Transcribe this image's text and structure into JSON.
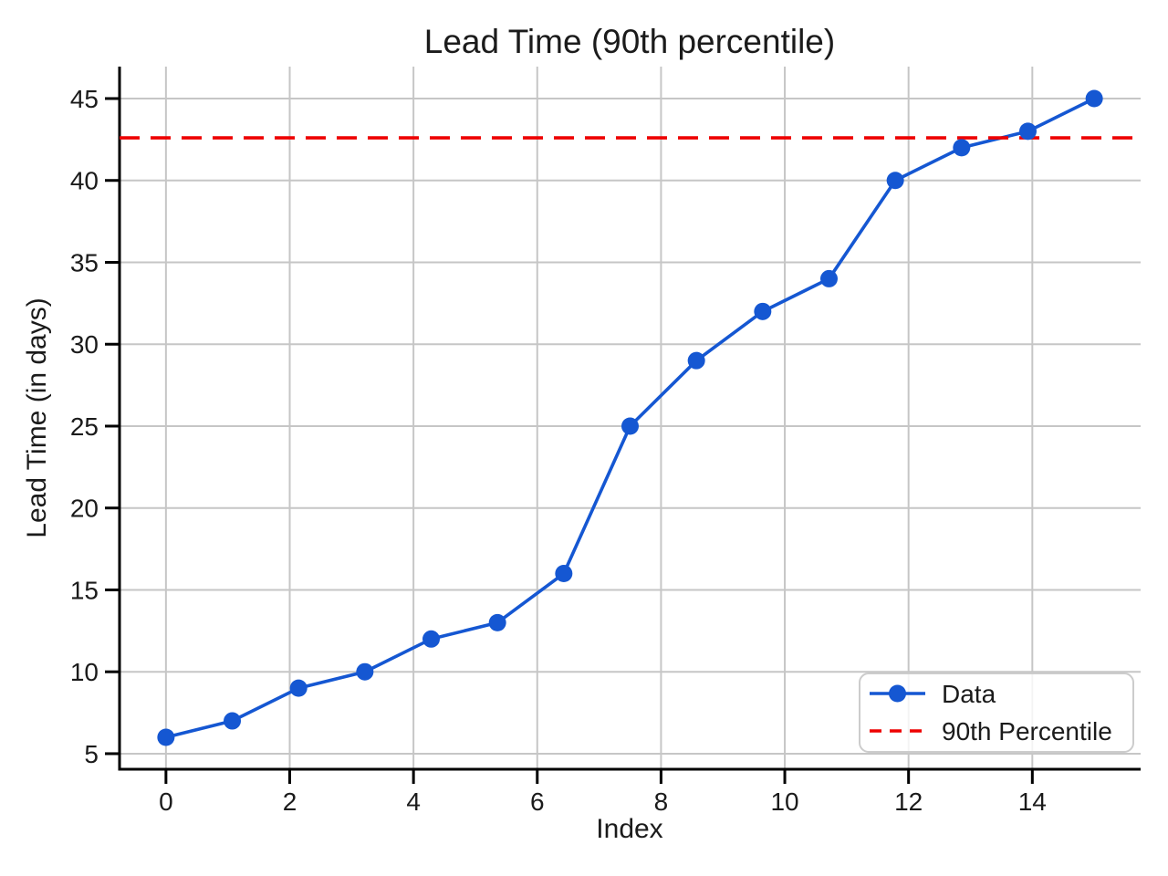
{
  "chart_data": {
    "type": "line",
    "title": "Lead Time (90th percentile)",
    "xlabel": "Index",
    "ylabel": "Lead Time (in days)",
    "x": [
      0,
      1.0714,
      2.1429,
      3.2143,
      4.2857,
      5.3571,
      6.4286,
      7.5,
      8.5714,
      9.6429,
      10.7143,
      11.7857,
      12.8571,
      13.9286,
      15
    ],
    "y": [
      6,
      7,
      9,
      10,
      12,
      13,
      16,
      25,
      29,
      32,
      34,
      40,
      42,
      43,
      45
    ],
    "percentile_line": {
      "value": 42.6,
      "style": "dashed"
    },
    "xlim": [
      -0.75,
      15.75
    ],
    "ylim": [
      4.05,
      46.95
    ],
    "xticks": [
      0,
      2,
      4,
      6,
      8,
      10,
      12,
      14
    ],
    "yticks": [
      5,
      10,
      15,
      20,
      25,
      30,
      35,
      40,
      45
    ],
    "grid": true,
    "legend": {
      "position": "lower right",
      "entries": [
        {
          "label": "Data",
          "marker": "circle",
          "line": "solid",
          "color": "#1557d2"
        },
        {
          "label": "90th Percentile",
          "marker": "none",
          "line": "dashed",
          "color": "#ee0000"
        }
      ]
    },
    "colors": {
      "line": "#1557d2",
      "marker": "#1557d2",
      "percentile": "#ee0000",
      "grid": "#c6c6c6",
      "spine": "#000000",
      "text": "#1b1b1b",
      "legend_border": "#cccccc"
    }
  }
}
